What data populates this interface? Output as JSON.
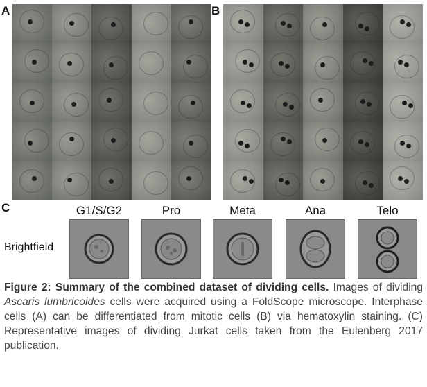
{
  "panels": {
    "a_label": "A",
    "b_label": "B",
    "c_label": "C"
  },
  "panel_c": {
    "row_label": "Brightfield",
    "stages": [
      "G1/S/G2",
      "Pro",
      "Meta",
      "Ana",
      "Telo"
    ]
  },
  "caption": {
    "title": "Figure 2: Summary of the combined dataset of dividing cells.",
    "text_1": "Images of dividing ",
    "species": "Ascaris lumbricoides",
    "text_2": " cells were acquired using a FoldScope microscope.  Interphase cells (A) can be differentiated from mitotic cells (B) via hematoxylin staining. (C) Representative images of dividing Jurkat cells taken from the Eulenberg 2017 publication."
  }
}
